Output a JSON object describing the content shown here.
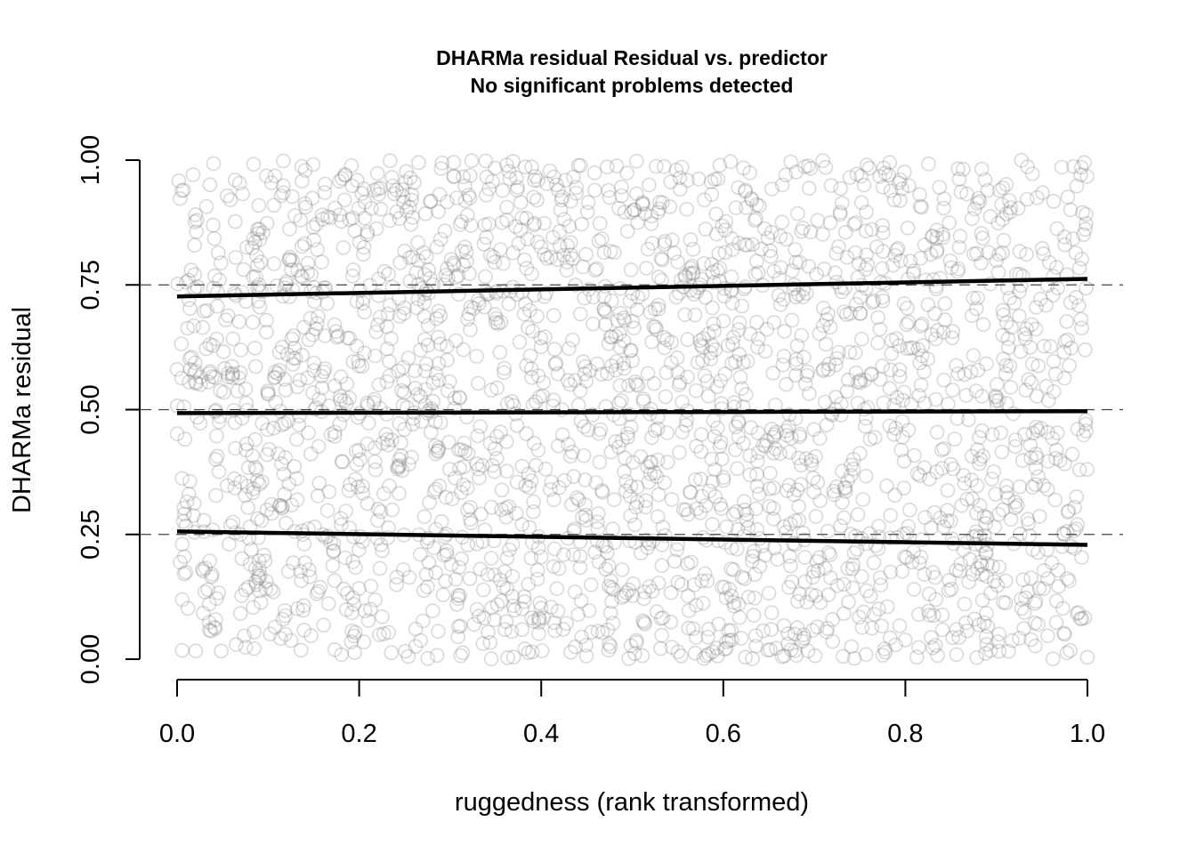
{
  "chart_data": {
    "type": "scatter",
    "title": "DHARMa residual Residual vs. predictor",
    "subtitle": "No significant problems detected",
    "xlabel": "ruggedness (rank transformed)",
    "ylabel": "DHARMa residual",
    "xlim": [
      0,
      1
    ],
    "ylim": [
      0,
      1
    ],
    "x_ticks": [
      "0.0",
      "0.2",
      "0.4",
      "0.6",
      "0.8",
      "1.0"
    ],
    "y_ticks": [
      "0.00",
      "0.25",
      "0.50",
      "0.75",
      "1.00"
    ],
    "reference_lines": [
      0.25,
      0.5,
      0.75
    ],
    "quantile_fits": [
      {
        "quantile": 0.25,
        "x": [
          0,
          1
        ],
        "y": [
          0.256,
          0.229
        ]
      },
      {
        "quantile": 0.5,
        "x": [
          0,
          1
        ],
        "y": [
          0.493,
          0.497
        ]
      },
      {
        "quantile": 0.75,
        "x": [
          0,
          1
        ],
        "y": [
          0.727,
          0.762
        ]
      }
    ],
    "points": {
      "count": 2500,
      "distribution": "uniform",
      "x_range": [
        0,
        1
      ],
      "y_range": [
        0,
        1
      ],
      "marker": "open-circle",
      "color": "#9a9a9a"
    }
  }
}
